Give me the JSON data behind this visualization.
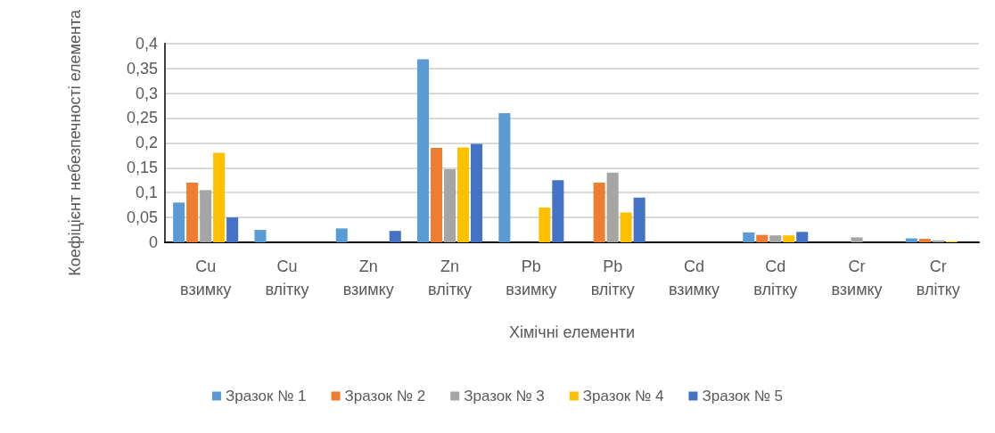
{
  "chart_data": {
    "type": "bar",
    "xlabel": "Хімічні елементи",
    "ylabel": "Коефіцієнт небезпечності елемента",
    "categories": [
      "Cu взимку",
      "Cu влітку",
      "Zn взимку",
      "Zn влітку",
      "Pb взимку",
      "Pb влітку",
      "Cd взимку",
      "Cd влітку",
      "Cr взимку",
      "Cr влітку"
    ],
    "series": [
      {
        "name": "Зразок № 1",
        "color": "#5b9bd5",
        "values": [
          0.08,
          0.025,
          0.028,
          0.368,
          0.26,
          null,
          null,
          0.02,
          null,
          0.008
        ]
      },
      {
        "name": "Зразок № 2",
        "color": "#ed7d31",
        "values": [
          0.12,
          null,
          null,
          0.19,
          null,
          0.12,
          null,
          0.015,
          null,
          0.007
        ]
      },
      {
        "name": "Зразок № 3",
        "color": "#a5a5a5",
        "values": [
          0.105,
          null,
          null,
          0.147,
          null,
          0.14,
          null,
          0.014,
          0.01,
          0.004
        ]
      },
      {
        "name": "Зразок № 4",
        "color": "#ffc000",
        "values": [
          0.18,
          null,
          null,
          0.191,
          0.07,
          0.06,
          null,
          0.014,
          null,
          0.002
        ]
      },
      {
        "name": "Зразок № 5",
        "color": "#4472c4",
        "values": [
          0.05,
          null,
          0.023,
          0.198,
          0.125,
          0.09,
          null,
          0.021,
          null,
          null
        ]
      }
    ],
    "ylim": [
      0,
      0.4
    ],
    "yticks": [
      0,
      {
        "value": 0.05,
        "label": "0,05"
      },
      {
        "value": 0.1,
        "label": "0,1"
      },
      {
        "value": 0.15,
        "label": "0,15"
      },
      {
        "value": 0.2,
        "label": "0,2"
      },
      {
        "value": 0.25,
        "label": "0,25"
      },
      {
        "value": 0.3,
        "label": "0,3"
      },
      {
        "value": 0.35,
        "label": "0,35"
      },
      {
        "value": 0.4,
        "label": "0,4"
      }
    ],
    "grid": "y",
    "legend": "bottom"
  }
}
